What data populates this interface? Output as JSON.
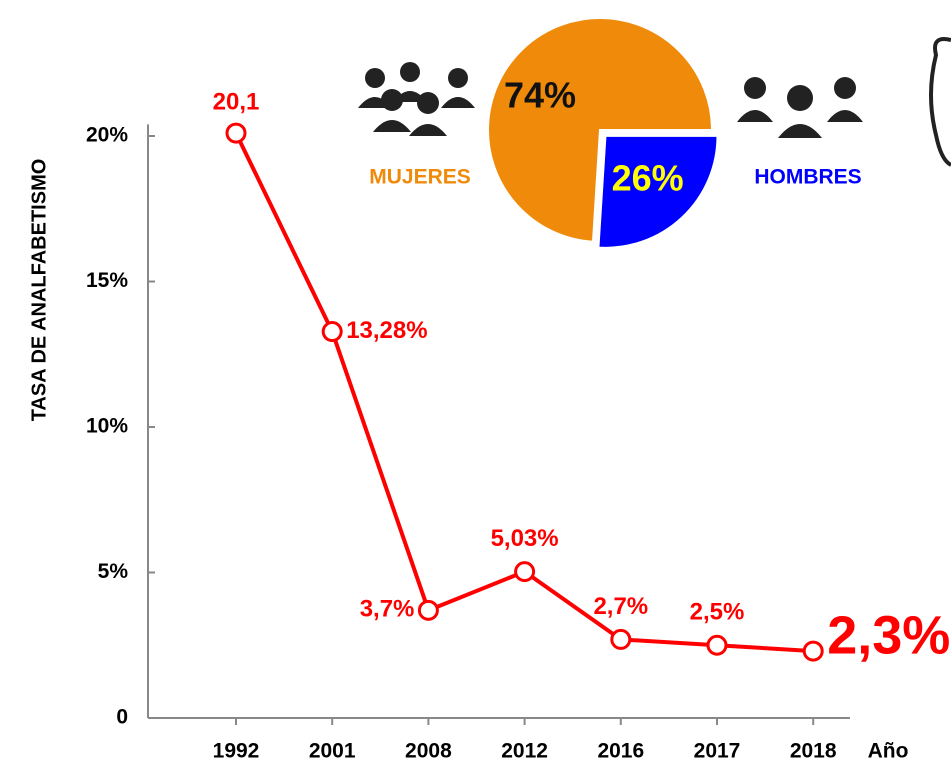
{
  "chart_data": [
    {
      "type": "line",
      "y_label": "TASA DE ANALFABETISMO",
      "x_label": "Año",
      "categories": [
        "1992",
        "2001",
        "2008",
        "2012",
        "2016",
        "2017",
        "2018"
      ],
      "values": [
        20.1,
        13.28,
        3.7,
        5.03,
        2.7,
        2.5,
        2.3
      ],
      "value_labels": [
        "20,1",
        "13,28%",
        "3,7%",
        "5,03%",
        "2,7%",
        "2,5%",
        "2,3%"
      ],
      "color": "#ff0000",
      "ylim": [
        0,
        20.4
      ],
      "yticks": [
        0,
        {
          "value": 5,
          "label": "5%"
        },
        {
          "value": 10,
          "label": "10%"
        },
        {
          "value": 15,
          "label": "15%"
        },
        {
          "value": 20,
          "label": "20%"
        }
      ]
    },
    {
      "type": "pie",
      "categories": [
        "MUJERES",
        "HOMBRES"
      ],
      "values": [
        74,
        26
      ],
      "value_labels": [
        "74%",
        "26%"
      ],
      "colors": [
        "#ef8a0a",
        "#0000ff"
      ]
    }
  ]
}
